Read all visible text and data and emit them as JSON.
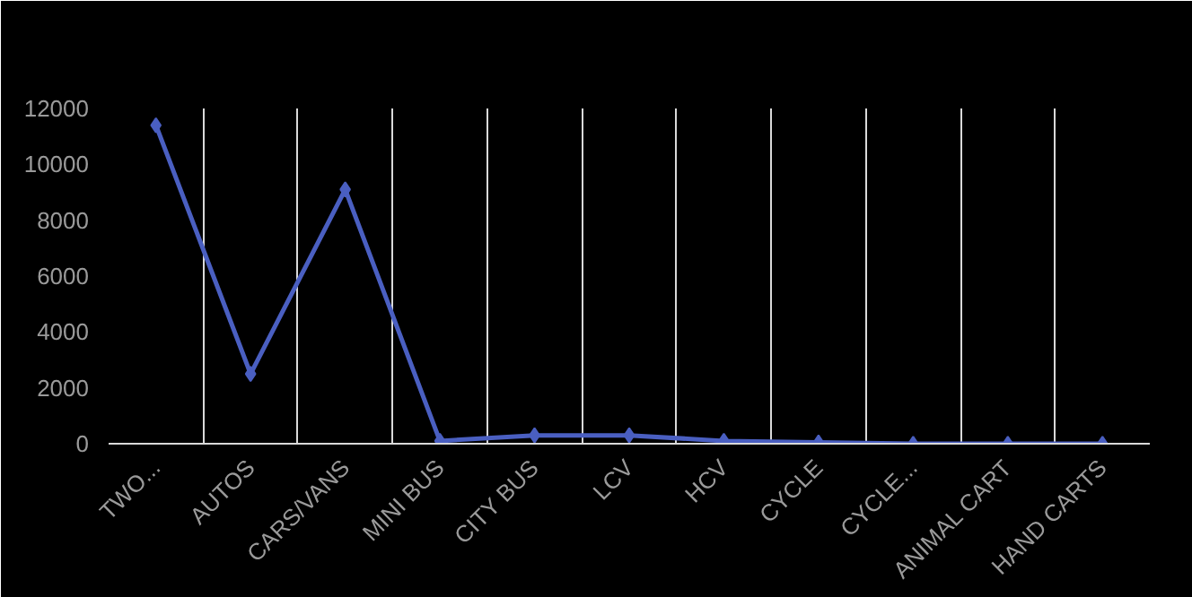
{
  "chart_data": {
    "type": "line",
    "categories": [
      "TWO...",
      "AUTOS",
      "CARS/VANS",
      "MINI BUS",
      "CITY BUS",
      "LCV",
      "HCV",
      "CYCLE",
      "CYCLE...",
      "ANIMAL CART",
      "HAND CARTS"
    ],
    "series": [
      {
        "color": "#4a5fc1",
        "values": [
          11400,
          2500,
          9100,
          100,
          300,
          300,
          100,
          50,
          0,
          0,
          0
        ]
      }
    ],
    "ylim": [
      0,
      12000
    ],
    "yticks": [
      0,
      2000,
      4000,
      6000,
      8000,
      10000,
      12000
    ],
    "grid": "x",
    "marker": "diamond",
    "line_style": "solid"
  }
}
